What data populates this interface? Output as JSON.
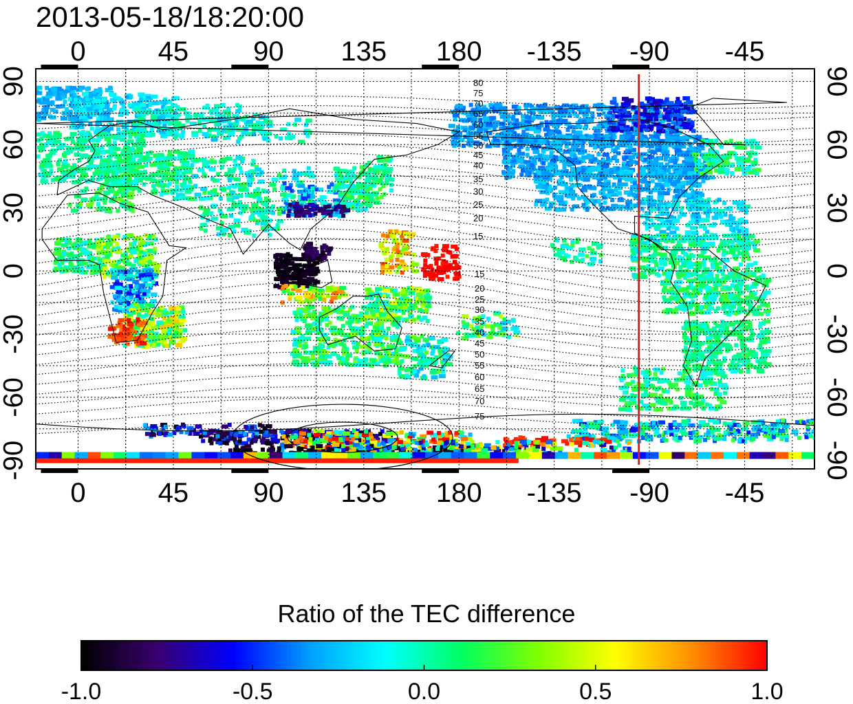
{
  "title": "2013-05-18/18:20:00",
  "map": {
    "lon_ticks": [
      "0",
      "45",
      "90",
      "135",
      "180",
      "-135",
      "-90",
      "-45"
    ],
    "lon_tick_values": [
      0,
      45,
      90,
      135,
      180,
      225,
      270,
      315
    ],
    "lon_range": [
      -20,
      348
    ],
    "lat_ticks": [
      "90",
      "60",
      "30",
      "0",
      "-30",
      "-60",
      "-90"
    ],
    "lat_tick_values": [
      90,
      60,
      30,
      0,
      -30,
      -60,
      -90
    ],
    "lat_range": [
      -94,
      96
    ],
    "contour_labels_north": [
      "80",
      "75",
      "70",
      "65",
      "60",
      "55",
      "50",
      "45",
      "40",
      "35",
      "30",
      "25",
      "20",
      "15"
    ],
    "contour_labels_south": [
      "15",
      "20",
      "25",
      "30",
      "35",
      "40",
      "45",
      "50",
      "55",
      "60",
      "65",
      "70",
      "75"
    ],
    "marker_line": {
      "longitude": -95,
      "color": "#e02020"
    },
    "grid": true
  },
  "colorbar": {
    "title": "Ratio of the TEC difference",
    "ticks": [
      "-1.0",
      "-0.5",
      "0.0",
      "0.5",
      "1.0"
    ],
    "tick_values": [
      -1.0,
      -0.5,
      0.0,
      0.5,
      1.0
    ],
    "range": [
      -1.0,
      1.0
    ],
    "colors": [
      "#000000",
      "#3a0070",
      "#0000ff",
      "#00a0ff",
      "#00ffff",
      "#00ff60",
      "#80ff00",
      "#ffff00",
      "#ff9000",
      "#ff0000"
    ]
  }
}
